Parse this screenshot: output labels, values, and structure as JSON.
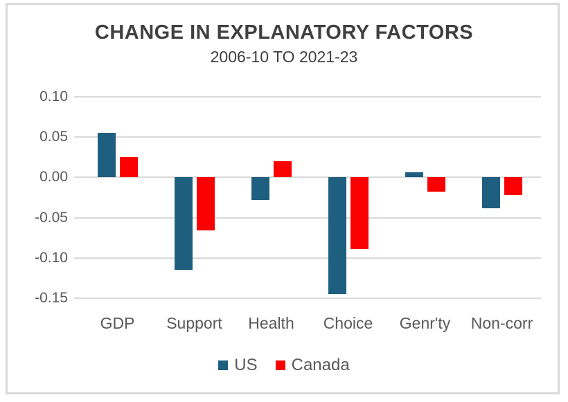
{
  "chart_data": {
    "type": "bar",
    "title": "CHANGE IN EXPLANATORY FACTORS",
    "subtitle": "2006-10 TO 2021-23",
    "categories": [
      "GDP",
      "Support",
      "Health",
      "Choice",
      "Genr'ty",
      "Non-corr"
    ],
    "series": [
      {
        "name": "US",
        "color": "#1E5F80",
        "values": [
          0.055,
          -0.115,
          -0.028,
          -0.145,
          0.006,
          -0.038
        ]
      },
      {
        "name": "Canada",
        "color": "#FA0000",
        "values": [
          0.025,
          -0.066,
          0.02,
          -0.089,
          -0.018,
          -0.022
        ]
      }
    ],
    "ylim": [
      -0.15,
      0.1
    ],
    "yticks": [
      0.1,
      0.05,
      0.0,
      -0.05,
      -0.1,
      -0.15
    ],
    "ytick_labels": [
      "0.10",
      "0.05",
      "0.00",
      "-0.05",
      "-0.10",
      "-0.15"
    ],
    "grid": true,
    "legend_position": "bottom"
  },
  "colors": {
    "frame_border": "#D9D9D9",
    "gridline": "#D9D9D9",
    "title_text": "#404040",
    "axis_text": "#595959"
  }
}
